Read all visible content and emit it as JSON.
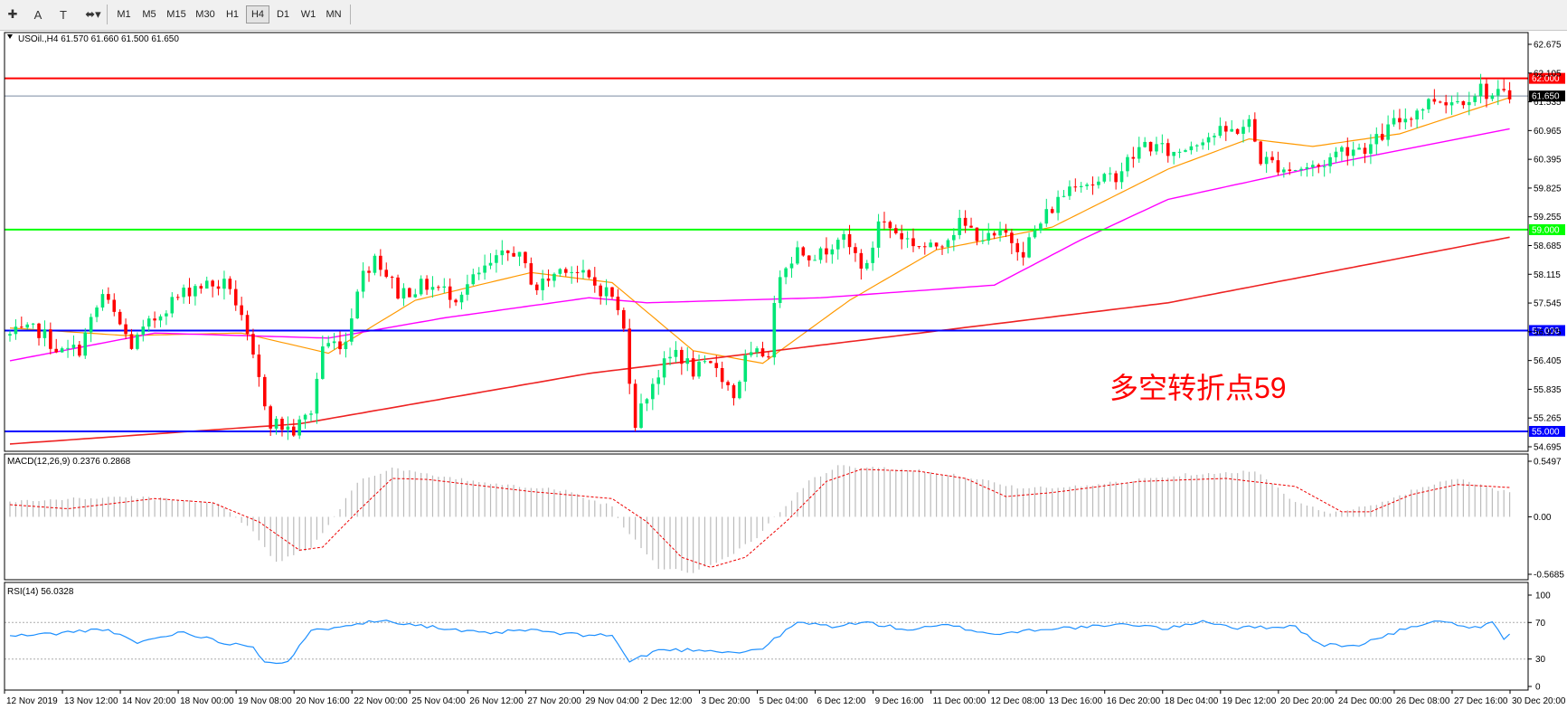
{
  "toolbar": {
    "tools": [
      {
        "icon": "crosshair-icon",
        "glyph": "✚"
      },
      {
        "icon": "text-label-icon",
        "glyph": "A"
      },
      {
        "icon": "text-box-icon",
        "glyph": "T"
      },
      {
        "icon": "shapes-dropdown-icon",
        "glyph": "⬌▾"
      }
    ],
    "timeframes": [
      "M1",
      "M5",
      "M15",
      "M30",
      "H1",
      "H4",
      "D1",
      "W1",
      "MN"
    ],
    "active_timeframe": "H4"
  },
  "colors": {
    "bull": "#00e676",
    "bear": "#ff0000",
    "ma_fast": "#ff9900",
    "ma_mid": "#ff00ff",
    "ma_slow": "#ee2222",
    "hline_red": "#ff0000",
    "hline_green": "#00ff00",
    "hline_blue": "#0000ff",
    "macd_hist": "#bbbbbb",
    "macd_signal": "#ee0000",
    "rsi_line": "#1e90ff",
    "annotation": "#ff0000"
  },
  "chart_data": [
    {
      "type": "candlestick",
      "title": "USOil.,H4  61.570 61.660 61.500 61.650",
      "symbol": "USOil.",
      "timeframe": "H4",
      "ohlc_header": "61.570 61.660 61.500 61.650",
      "last_price_label": "61.650",
      "last_price": 61.65,
      "ylim": [
        54.695,
        62.675
      ],
      "y_ticks": [
        "62.675",
        "62.105",
        "61.535",
        "60.965",
        "60.395",
        "59.825",
        "59.255",
        "58.685",
        "58.115",
        "57.545",
        "56.975",
        "56.405",
        "55.835",
        "55.265",
        "54.695"
      ],
      "x_labels": [
        "12 Nov 2019",
        "13 Nov 12:00",
        "14 Nov 20:00",
        "18 Nov 00:00",
        "19 Nov 08:00",
        "20 Nov 16:00",
        "22 Nov 00:00",
        "25 Nov 04:00",
        "26 Nov 12:00",
        "27 Nov 20:00",
        "29 Nov 04:00",
        "2 Dec 12:00",
        "3 Dec 20:00",
        "5 Dec 04:00",
        "6 Dec 12:00",
        "9 Dec 16:00",
        "11 Dec 00:00",
        "12 Dec 08:00",
        "13 Dec 16:00",
        "16 Dec 20:00",
        "18 Dec 04:00",
        "19 Dec 12:00",
        "20 Dec 20:00",
        "24 Dec 00:00",
        "26 Dec 08:00",
        "27 Dec 16:00",
        "30 Dec 20:00"
      ],
      "horizontal_lines": [
        {
          "value": 62.0,
          "label": "62.000",
          "color": "#ff0000"
        },
        {
          "value": 59.0,
          "label": "59.000",
          "color": "#00ff00"
        },
        {
          "value": 57.0,
          "label": "57.000",
          "color": "#0000ff"
        },
        {
          "value": 55.0,
          "label": "55.000",
          "color": "#0000ff"
        }
      ],
      "annotation": "多空转折点59",
      "close_path_anchors": [
        [
          0,
          56.9
        ],
        [
          5,
          57.0
        ],
        [
          9,
          56.55
        ],
        [
          12,
          56.65
        ],
        [
          16,
          57.7
        ],
        [
          21,
          56.7
        ],
        [
          27,
          57.5
        ],
        [
          32,
          57.9
        ],
        [
          38,
          57.9
        ],
        [
          41,
          56.8
        ],
        [
          45,
          55.2
        ],
        [
          49,
          55.0
        ],
        [
          52,
          55.4
        ],
        [
          54,
          56.7
        ],
        [
          58,
          56.8
        ],
        [
          60,
          57.9
        ],
        [
          63,
          58.5
        ],
        [
          67,
          57.75
        ],
        [
          72,
          57.9
        ],
        [
          77,
          57.7
        ],
        [
          82,
          58.2
        ],
        [
          87,
          58.6
        ],
        [
          91,
          57.85
        ],
        [
          96,
          58.3
        ],
        [
          101,
          57.9
        ],
        [
          104,
          57.7
        ],
        [
          106,
          57.0
        ],
        [
          108,
          55.2
        ],
        [
          111,
          56.0
        ],
        [
          115,
          56.6
        ],
        [
          118,
          56.2
        ],
        [
          122,
          56.3
        ],
        [
          125,
          55.7
        ],
        [
          127,
          56.4
        ],
        [
          131,
          56.6
        ],
        [
          133,
          58.2
        ],
        [
          136,
          58.6
        ],
        [
          140,
          58.5
        ],
        [
          143,
          58.9
        ],
        [
          148,
          58.2
        ],
        [
          150,
          59.2
        ],
        [
          155,
          58.8
        ],
        [
          159,
          58.6
        ],
        [
          164,
          59.1
        ],
        [
          169,
          58.8
        ],
        [
          172,
          58.9
        ],
        [
          175,
          58.6
        ],
        [
          179,
          59.3
        ],
        [
          184,
          60.0
        ],
        [
          188,
          59.9
        ],
        [
          191,
          60.1
        ],
        [
          196,
          60.7
        ],
        [
          201,
          60.5
        ],
        [
          206,
          60.85
        ],
        [
          211,
          60.95
        ],
        [
          214,
          61.1
        ],
        [
          216,
          60.4
        ],
        [
          221,
          60.2
        ],
        [
          226,
          60.25
        ],
        [
          230,
          60.6
        ],
        [
          235,
          60.65
        ],
        [
          239,
          61.1
        ],
        [
          242,
          61.3
        ],
        [
          246,
          61.6
        ],
        [
          250,
          61.55
        ],
        [
          254,
          61.8
        ],
        [
          256,
          61.65
        ],
        [
          259,
          61.65
        ]
      ],
      "ma_fast_anchors": [
        [
          0,
          57.05
        ],
        [
          20,
          56.9
        ],
        [
          40,
          56.95
        ],
        [
          55,
          56.55
        ],
        [
          70,
          57.6
        ],
        [
          90,
          58.15
        ],
        [
          104,
          57.95
        ],
        [
          118,
          56.6
        ],
        [
          130,
          56.35
        ],
        [
          145,
          57.6
        ],
        [
          160,
          58.6
        ],
        [
          180,
          59.05
        ],
        [
          200,
          60.2
        ],
        [
          214,
          60.8
        ],
        [
          225,
          60.65
        ],
        [
          240,
          60.9
        ],
        [
          259,
          61.62
        ]
      ],
      "ma_mid_anchors": [
        [
          0,
          56.4
        ],
        [
          25,
          56.95
        ],
        [
          55,
          56.85
        ],
        [
          75,
          57.25
        ],
        [
          100,
          57.65
        ],
        [
          110,
          57.55
        ],
        [
          140,
          57.65
        ],
        [
          170,
          57.9
        ],
        [
          185,
          58.8
        ],
        [
          200,
          59.6
        ],
        [
          230,
          60.35
        ],
        [
          259,
          61.0
        ]
      ],
      "ma_slow_anchors": [
        [
          0,
          54.75
        ],
        [
          50,
          55.15
        ],
        [
          100,
          56.15
        ],
        [
          150,
          56.85
        ],
        [
          200,
          57.55
        ],
        [
          259,
          58.85
        ]
      ]
    },
    {
      "type": "bar",
      "title": "MACD(12,26,9) 0.2376 0.2868",
      "name": "MACD(12,26,9)",
      "values_header": "0.2376 0.2868",
      "last_main": 0.2376,
      "last_signal": 0.2868,
      "ylim": [
        -0.5685,
        0.5497
      ],
      "y_ticks": [
        "0.5497",
        "0.00",
        "-0.5685"
      ],
      "hist_anchors": [
        [
          0,
          0.15
        ],
        [
          20,
          0.2
        ],
        [
          36,
          0.14
        ],
        [
          42,
          -0.15
        ],
        [
          46,
          -0.45
        ],
        [
          52,
          -0.3
        ],
        [
          56,
          0.0
        ],
        [
          60,
          0.35
        ],
        [
          66,
          0.48
        ],
        [
          76,
          0.38
        ],
        [
          96,
          0.26
        ],
        [
          104,
          0.1
        ],
        [
          106,
          -0.1
        ],
        [
          112,
          -0.5
        ],
        [
          118,
          -0.55
        ],
        [
          124,
          -0.4
        ],
        [
          129,
          -0.2
        ],
        [
          133,
          0.05
        ],
        [
          138,
          0.35
        ],
        [
          143,
          0.5
        ],
        [
          155,
          0.47
        ],
        [
          165,
          0.4
        ],
        [
          175,
          0.28
        ],
        [
          185,
          0.3
        ],
        [
          195,
          0.37
        ],
        [
          205,
          0.43
        ],
        [
          215,
          0.45
        ],
        [
          222,
          0.15
        ],
        [
          228,
          0.03
        ],
        [
          236,
          0.12
        ],
        [
          244,
          0.3
        ],
        [
          250,
          0.38
        ],
        [
          259,
          0.24
        ]
      ],
      "signal_anchors": [
        [
          0,
          0.12
        ],
        [
          10,
          0.08
        ],
        [
          25,
          0.18
        ],
        [
          35,
          0.14
        ],
        [
          43,
          -0.05
        ],
        [
          50,
          -0.33
        ],
        [
          54,
          -0.3
        ],
        [
          60,
          0.05
        ],
        [
          66,
          0.38
        ],
        [
          72,
          0.37
        ],
        [
          90,
          0.25
        ],
        [
          104,
          0.18
        ],
        [
          110,
          -0.05
        ],
        [
          116,
          -0.4
        ],
        [
          121,
          -0.5
        ],
        [
          127,
          -0.4
        ],
        [
          134,
          -0.05
        ],
        [
          141,
          0.35
        ],
        [
          147,
          0.47
        ],
        [
          157,
          0.45
        ],
        [
          165,
          0.38
        ],
        [
          172,
          0.2
        ],
        [
          180,
          0.24
        ],
        [
          195,
          0.35
        ],
        [
          210,
          0.38
        ],
        [
          222,
          0.3
        ],
        [
          230,
          0.05
        ],
        [
          235,
          0.05
        ],
        [
          242,
          0.22
        ],
        [
          250,
          0.32
        ],
        [
          259,
          0.29
        ]
      ]
    },
    {
      "type": "line",
      "title": "RSI(14) 56.0328",
      "name": "RSI(14)",
      "value_header": "56.0328",
      "last_value": 56.0328,
      "ylim": [
        0,
        100
      ],
      "y_ticks": [
        "100",
        "70",
        "30",
        "0"
      ],
      "levels": [
        70,
        30
      ],
      "anchors": [
        [
          0,
          55
        ],
        [
          8,
          58
        ],
        [
          16,
          63
        ],
        [
          22,
          48
        ],
        [
          30,
          60
        ],
        [
          36,
          49
        ],
        [
          42,
          44
        ],
        [
          44,
          27
        ],
        [
          48,
          27
        ],
        [
          52,
          60
        ],
        [
          58,
          68
        ],
        [
          65,
          72
        ],
        [
          70,
          68
        ],
        [
          76,
          62
        ],
        [
          82,
          58
        ],
        [
          90,
          62
        ],
        [
          96,
          57
        ],
        [
          104,
          56
        ],
        [
          107,
          27
        ],
        [
          112,
          40
        ],
        [
          120,
          40
        ],
        [
          126,
          37
        ],
        [
          130,
          42
        ],
        [
          136,
          70
        ],
        [
          142,
          66
        ],
        [
          148,
          70
        ],
        [
          155,
          62
        ],
        [
          162,
          67
        ],
        [
          170,
          57
        ],
        [
          178,
          63
        ],
        [
          186,
          65
        ],
        [
          194,
          68
        ],
        [
          200,
          63
        ],
        [
          206,
          72
        ],
        [
          212,
          64
        ],
        [
          222,
          66
        ],
        [
          226,
          46
        ],
        [
          232,
          44
        ],
        [
          238,
          56
        ],
        [
          242,
          66
        ],
        [
          248,
          72
        ],
        [
          252,
          62
        ],
        [
          256,
          69
        ],
        [
          258,
          53
        ],
        [
          259,
          56
        ]
      ]
    }
  ]
}
